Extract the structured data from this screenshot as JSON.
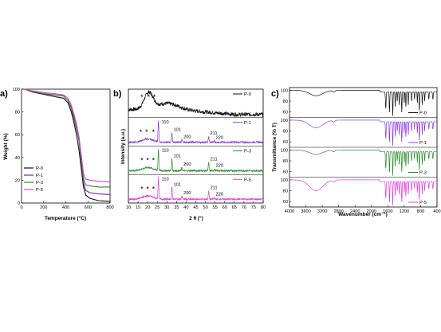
{
  "chart_data": [
    {
      "panel": "a)",
      "type": "line",
      "xlabel": "Temperature (°C)",
      "ylabel": "Weight (%)",
      "xlim": [
        0,
        800
      ],
      "ylim": [
        0,
        100
      ],
      "xticks": [
        0,
        200,
        400,
        600,
        800
      ],
      "yticks": [
        0,
        20,
        40,
        60,
        80,
        100
      ],
      "legend_position": "bottom-left",
      "series": [
        {
          "name": "P-0",
          "color": "#111111",
          "points": [
            [
              25,
              100
            ],
            [
              100,
              97.5
            ],
            [
              200,
              95.5
            ],
            [
              300,
              93.5
            ],
            [
              380,
              92
            ],
            [
              420,
              88
            ],
            [
              450,
              80
            ],
            [
              480,
              68
            ],
            [
              500,
              58
            ],
            [
              520,
              46
            ],
            [
              540,
              30
            ],
            [
              560,
              14
            ],
            [
              580,
              7
            ],
            [
              620,
              4
            ],
            [
              700,
              2
            ],
            [
              800,
              1.5
            ]
          ]
        },
        {
          "name": "P-1",
          "color": "#6a2a9a",
          "points": [
            [
              25,
              100
            ],
            [
              100,
              98
            ],
            [
              200,
              96
            ],
            [
              300,
              95
            ],
            [
              380,
              94
            ],
            [
              420,
              90
            ],
            [
              450,
              83
            ],
            [
              480,
              72
            ],
            [
              500,
              64
            ],
            [
              520,
              54
            ],
            [
              540,
              36
            ],
            [
              560,
              18
            ],
            [
              580,
              11
            ],
            [
              620,
              9
            ],
            [
              700,
              8
            ],
            [
              800,
              7.5
            ]
          ]
        },
        {
          "name": "P-3",
          "color": "#2a8a2a",
          "points": [
            [
              25,
              100
            ],
            [
              100,
              98
            ],
            [
              200,
              96
            ],
            [
              300,
              95
            ],
            [
              380,
              94
            ],
            [
              420,
              90
            ],
            [
              450,
              84
            ],
            [
              480,
              74
            ],
            [
              500,
              65
            ],
            [
              520,
              56
            ],
            [
              540,
              38
            ],
            [
              560,
              22
            ],
            [
              580,
              16
            ],
            [
              620,
              15
            ],
            [
              700,
              14
            ],
            [
              800,
              14
            ]
          ]
        },
        {
          "name": "P-5",
          "color": "#e040d8",
          "points": [
            [
              25,
              100
            ],
            [
              100,
              98.5
            ],
            [
              200,
              97
            ],
            [
              300,
              96
            ],
            [
              380,
              95
            ],
            [
              420,
              92
            ],
            [
              450,
              86
            ],
            [
              480,
              76
            ],
            [
              500,
              68
            ],
            [
              520,
              58
            ],
            [
              540,
              42
            ],
            [
              560,
              26
            ],
            [
              580,
              21
            ],
            [
              620,
              20
            ],
            [
              700,
              19
            ],
            [
              800,
              18.5
            ]
          ]
        }
      ]
    },
    {
      "panel": "b)",
      "type": "line",
      "xlabel": "2 θ (°)",
      "ylabel": "Intensity (a.u.)",
      "xlim": [
        10,
        80
      ],
      "xticks": [
        10,
        15,
        20,
        25,
        30,
        35,
        40,
        45,
        50,
        55,
        60,
        65,
        70,
        75,
        80
      ],
      "series": [
        {
          "name": "P-0",
          "color": "#111111",
          "amorphous": true,
          "peaks": [],
          "stars": [
            17,
            20.5,
            23.5
          ]
        },
        {
          "name": "P-1",
          "color": "#8a3ae0",
          "amorphous": false,
          "peaks": [
            {
              "x": 25.6,
              "h": 1.0,
              "label": "110"
            },
            {
              "x": 32.6,
              "h": 0.45,
              "label": "101"
            },
            {
              "x": 37.8,
              "h": 0.12,
              "label": "200"
            },
            {
              "x": 51.7,
              "h": 0.28,
              "label": "211"
            },
            {
              "x": 54.6,
              "h": 0.08,
              "label": "220"
            }
          ],
          "stars": [
            16.5,
            19.5,
            23
          ]
        },
        {
          "name": "P-3",
          "color": "#2a8a2a",
          "amorphous": false,
          "peaks": [
            {
              "x": 25.6,
              "h": 1.0,
              "label": "110"
            },
            {
              "x": 32.6,
              "h": 0.55,
              "label": "101"
            },
            {
              "x": 37.8,
              "h": 0.15,
              "label": "200"
            },
            {
              "x": 51.7,
              "h": 0.4,
              "label": "211"
            },
            {
              "x": 54.6,
              "h": 0.1,
              "label": "220"
            }
          ],
          "stars": [
            17,
            20,
            23
          ]
        },
        {
          "name": "P-5",
          "color": "#e040d8",
          "amorphous": false,
          "peaks": [
            {
              "x": 25.6,
              "h": 1.0,
              "label": "110"
            },
            {
              "x": 32.6,
              "h": 0.55,
              "label": "101"
            },
            {
              "x": 37.8,
              "h": 0.15,
              "label": "200"
            },
            {
              "x": 51.7,
              "h": 0.4,
              "label": "211"
            },
            {
              "x": 54.6,
              "h": 0.1,
              "label": "220"
            }
          ],
          "stars": [
            17,
            20,
            23
          ]
        }
      ]
    },
    {
      "panel": "c)",
      "type": "line",
      "xlabel": "Wavenumber (cm⁻¹)",
      "ylabel": "Transmittance (% T)",
      "xlim": [
        4000,
        400
      ],
      "ylim": [
        50,
        105
      ],
      "xticks": [
        4000,
        3600,
        3200,
        2800,
        2400,
        2000,
        1600,
        1200,
        800,
        400
      ],
      "yticks": [
        60,
        80,
        100
      ],
      "series": [
        {
          "name": "P-0",
          "color": "#111111",
          "oh_depth": 10
        },
        {
          "name": "P-1",
          "color": "#8a3ae0",
          "oh_depth": 14
        },
        {
          "name": "P-3",
          "color": "#2a8a2a",
          "oh_depth": 8
        },
        {
          "name": "P-5",
          "color": "#e040d8",
          "oh_depth": 20
        }
      ]
    }
  ]
}
